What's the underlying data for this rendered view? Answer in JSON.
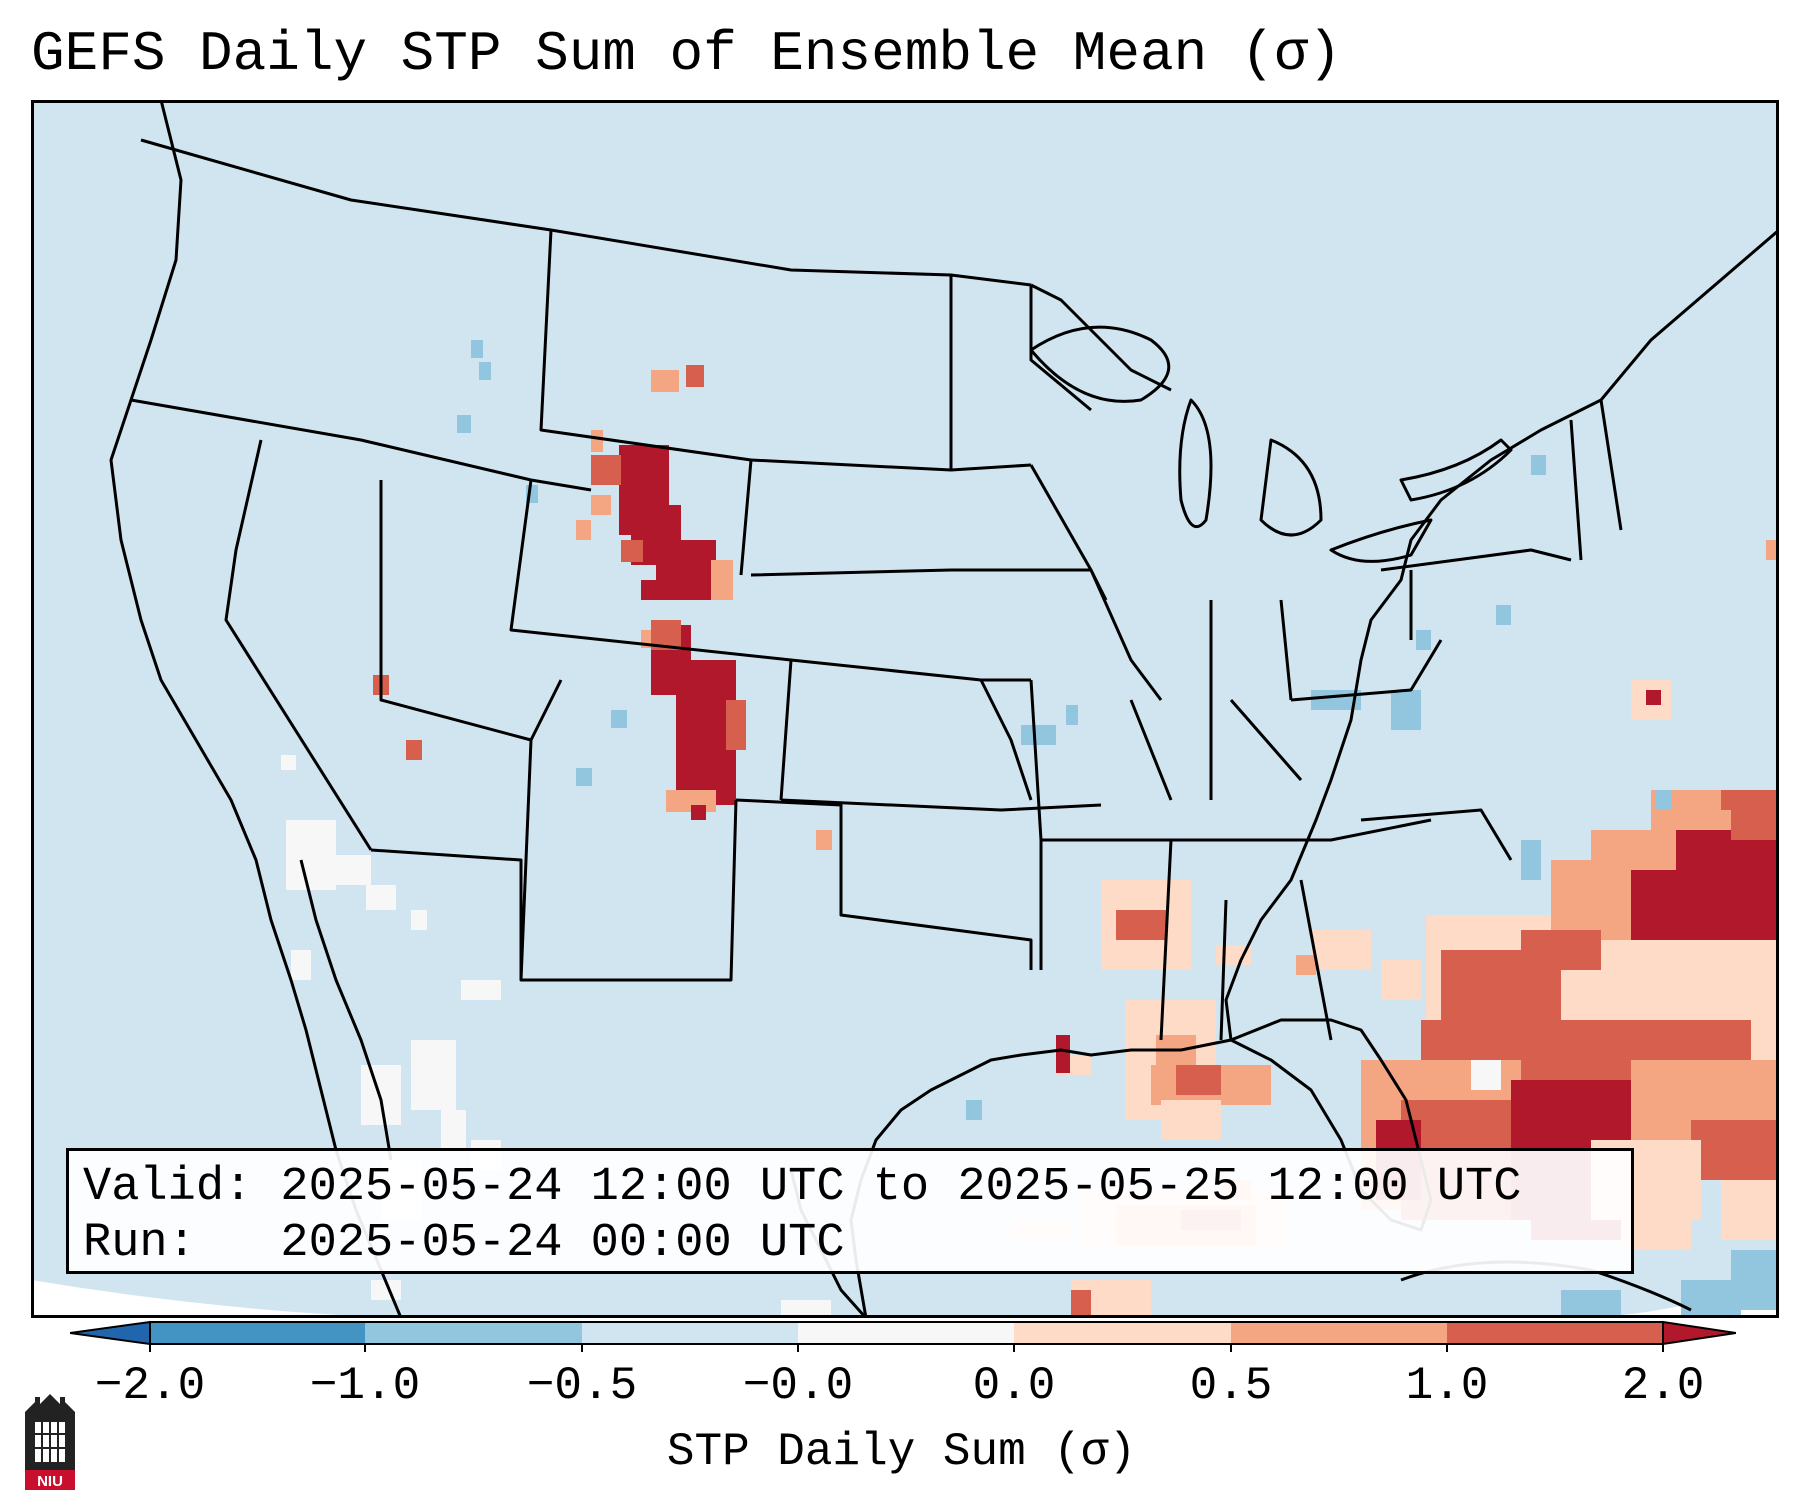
{
  "title": "GEFS Daily STP Sum of Ensemble Mean (σ)",
  "info": {
    "valid_line": "Valid: 2025-05-24 12:00 UTC to 2025-05-25 12:00 UTC",
    "run_line": "Run:   2025-05-24 00:00 UTC"
  },
  "colorbar": {
    "label": "STP Daily Sum (σ)",
    "ticks": [
      "−2.0",
      "−1.0",
      "−0.5",
      "−0.0",
      "0.0",
      "0.5",
      "1.0",
      "2.0"
    ],
    "colors": [
      "#2166ac",
      "#4393c3",
      "#92c5de",
      "#d1e5f0",
      "#f7f7f7",
      "#fddbc7",
      "#f4a582",
      "#d6604d",
      "#b2182b"
    ]
  },
  "logo": {
    "text": "NIU"
  },
  "map": {
    "background_color": "#d1e5f0",
    "regions": [
      {
        "name": "wyoming-colorado-high",
        "level": "2.0"
      },
      {
        "name": "mississippi-louisiana",
        "level": "1.0"
      },
      {
        "name": "florida-southeast",
        "level": "1.0"
      },
      {
        "name": "atlantic-offshore",
        "level": "2.0"
      },
      {
        "name": "gulf-of-mexico-south",
        "level": "0.5"
      }
    ]
  }
}
